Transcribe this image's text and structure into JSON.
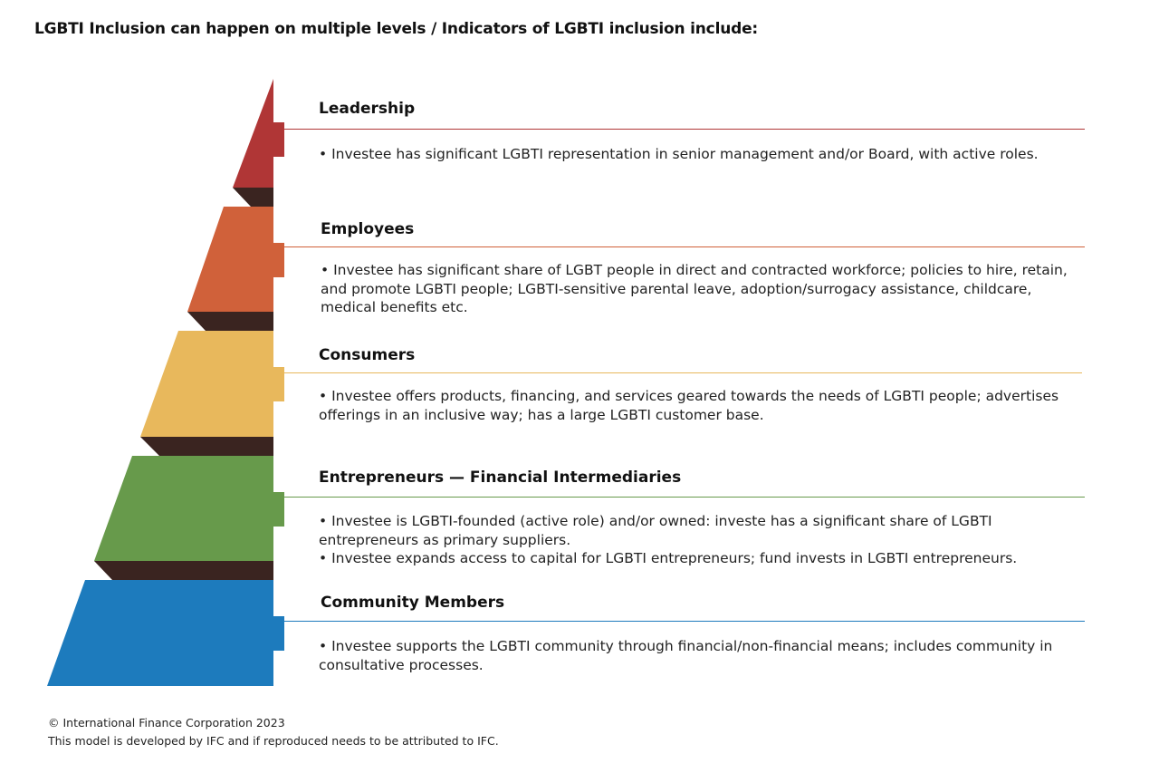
{
  "title": "LGBTI Inclusion can happen on multiple levels / Indicators of LGBTI inclusion include:",
  "colors": {
    "leadership": "#b03636",
    "employees": "#d0613a",
    "consumers": "#e8b85c",
    "entrepreneurs": "#679a4b",
    "community": "#1d7bbd",
    "shadow": "#3a2420"
  },
  "levels": [
    {
      "heading": "Leadership",
      "bullets": [
        "• Investee has significant LGBTI representation in senior management and/or Board, with active roles."
      ]
    },
    {
      "heading": "Employees",
      "bullets": [
        "• Investee has significant share of LGBT people in direct and contracted workforce; policies to hire, retain, and promote LGBTI people; LGBTI-sensitive parental leave, adoption/surrogacy assistance, childcare, medical benefits etc."
      ]
    },
    {
      "heading": "Consumers",
      "bullets": [
        "• Investee offers products, financing, and services geared towards the needs of LGBTI people; advertises offerings in an inclusive way; has a large LGBTI customer base."
      ]
    },
    {
      "heading": "Entrepreneurs — Financial Intermediaries",
      "bullets": [
        "• Investee is LGBTI-founded (active role) and/or owned: investe has a significant share of LGBTI entrepreneurs as primary suppliers.",
        "• Investee expands access to capital for LGBTI entrepreneurs; fund invests in LGBTI entrepreneurs."
      ]
    },
    {
      "heading": "Community Members",
      "bullets": [
        "• Investee supports the LGBTI community through financial/non-financial means; includes community in consultative processes."
      ]
    }
  ],
  "footer": {
    "copyright": "© International Finance Corporation 2023",
    "attribution": "This model is developed by IFC and if reproduced needs to be attributed to IFC."
  }
}
